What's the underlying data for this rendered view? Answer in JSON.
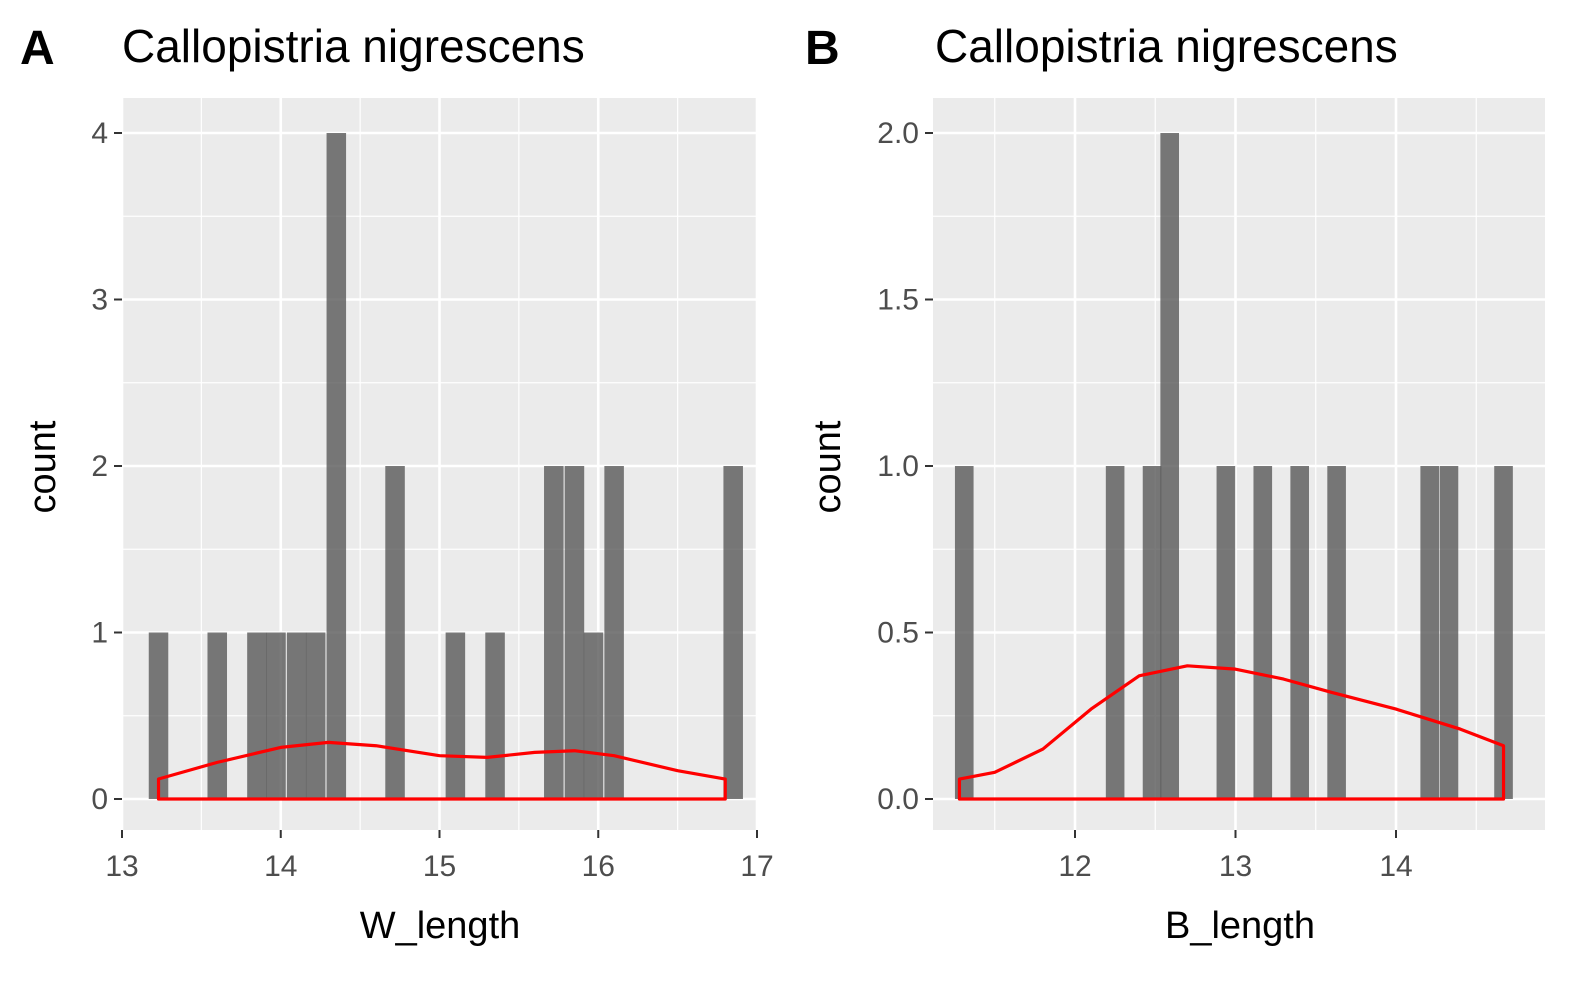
{
  "chart_data": [
    {
      "type": "bar",
      "panel_tag": "A",
      "title": "Callopistria nigrescens",
      "xlabel": "W_length",
      "ylabel": "count",
      "xlim": [
        13,
        17
      ],
      "ylim": [
        0,
        4
      ],
      "xticks": [
        "13",
        "14",
        "15",
        "16",
        "17"
      ],
      "yticks": [
        "0",
        "1",
        "2",
        "3",
        "4"
      ],
      "grid": true,
      "bins": [
        {
          "x": 13.23,
          "count": 1
        },
        {
          "x": 13.6,
          "count": 1
        },
        {
          "x": 13.85,
          "count": 1
        },
        {
          "x": 13.97,
          "count": 1
        },
        {
          "x": 14.1,
          "count": 1
        },
        {
          "x": 14.22,
          "count": 1
        },
        {
          "x": 14.35,
          "count": 4
        },
        {
          "x": 14.72,
          "count": 2
        },
        {
          "x": 15.1,
          "count": 1
        },
        {
          "x": 15.35,
          "count": 1
        },
        {
          "x": 15.72,
          "count": 2
        },
        {
          "x": 15.85,
          "count": 2
        },
        {
          "x": 15.97,
          "count": 1
        },
        {
          "x": 16.1,
          "count": 2
        },
        {
          "x": 16.85,
          "count": 2
        }
      ],
      "bin_width": 0.123,
      "density_curve": {
        "color": "#ff0000",
        "x": [
          13.23,
          13.6,
          14.0,
          14.3,
          14.6,
          15.0,
          15.3,
          15.6,
          15.85,
          16.1,
          16.5,
          16.8
        ],
        "y": [
          0.12,
          0.22,
          0.31,
          0.34,
          0.32,
          0.26,
          0.25,
          0.28,
          0.29,
          0.26,
          0.17,
          0.12
        ]
      }
    },
    {
      "type": "bar",
      "panel_tag": "B",
      "title": "Callopistria nigrescens",
      "xlabel": "B_length",
      "ylabel": "count",
      "xlim": [
        11.2,
        14.85
      ],
      "ylim": [
        0,
        2
      ],
      "xticks": [
        "12",
        "13",
        "14"
      ],
      "yticks": [
        "0.0",
        "0.5",
        "1.0",
        "1.5",
        "2.0"
      ],
      "grid": true,
      "bins": [
        {
          "x": 11.31,
          "count": 1
        },
        {
          "x": 12.25,
          "count": 1
        },
        {
          "x": 12.48,
          "count": 1
        },
        {
          "x": 12.59,
          "count": 2
        },
        {
          "x": 12.94,
          "count": 1
        },
        {
          "x": 13.17,
          "count": 1
        },
        {
          "x": 13.4,
          "count": 1
        },
        {
          "x": 13.63,
          "count": 1
        },
        {
          "x": 14.21,
          "count": 1
        },
        {
          "x": 14.33,
          "count": 1
        },
        {
          "x": 14.67,
          "count": 1
        }
      ],
      "bin_width": 0.116,
      "density_curve": {
        "color": "#ff0000",
        "x": [
          11.28,
          11.5,
          11.8,
          12.1,
          12.4,
          12.7,
          13.0,
          13.3,
          13.6,
          14.0,
          14.4,
          14.67
        ],
        "y": [
          0.06,
          0.08,
          0.15,
          0.27,
          0.37,
          0.4,
          0.39,
          0.36,
          0.32,
          0.27,
          0.21,
          0.16
        ]
      }
    }
  ]
}
